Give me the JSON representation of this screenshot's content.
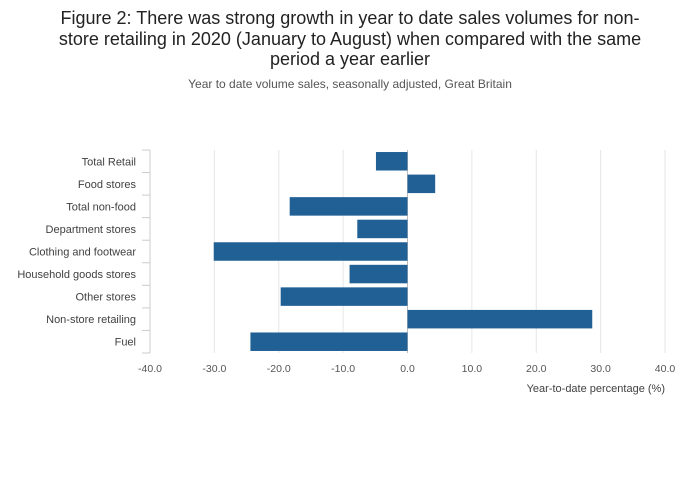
{
  "chart_data": {
    "type": "bar",
    "orientation": "horizontal",
    "title": "Figure 2: There was strong growth in year to date sales volumes for non-store retailing in 2020 (January to August) when compared with the same period a year earlier",
    "title_lines": [
      "Figure 2: There was strong growth in year to date sales volumes for non-",
      "store retailing in 2020 (January to August) when compared with the same",
      "period a year earlier"
    ],
    "subtitle": "Year to date volume sales, seasonally adjusted, Great Britain",
    "xlabel": "Year-to-date percentage (%)",
    "ylabel": "",
    "xlim": [
      -40,
      40
    ],
    "xticks": [
      -40,
      -30,
      -20,
      -10,
      0,
      10,
      20,
      30,
      40
    ],
    "xtick_labels": [
      "-40.0",
      "-30.0",
      "-20.0",
      "-10.0",
      "0.0",
      "10.0",
      "20.0",
      "30.0",
      "40.0"
    ],
    "grid": true,
    "categories": [
      "Total Retail",
      "Food stores",
      "Total non-food",
      "Department stores",
      "Clothing and footwear",
      "Household goods stores",
      "Other stores",
      "Non-store retailing",
      "Fuel"
    ],
    "values": [
      -4.9,
      4.3,
      -18.3,
      -7.8,
      -30.1,
      -9.0,
      -19.7,
      28.7,
      -24.4
    ],
    "bar_color": "#206095"
  }
}
